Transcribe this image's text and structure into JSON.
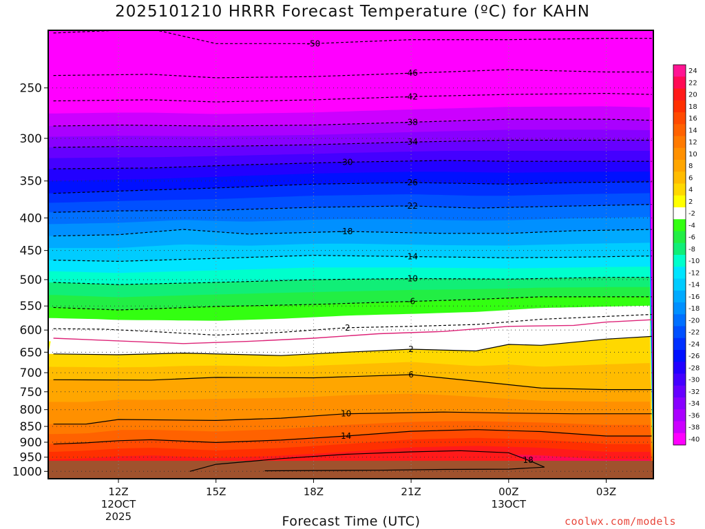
{
  "title": "2025101210 HRRR Forecast Temperature (ºC) for KAHN",
  "credit": "coolwx.com/models",
  "chart_data": {
    "type": "heatmap",
    "title": "2025101210 HRRR Forecast Temperature (ºC) for KAHN",
    "xlabel": "Forecast Time (UTC)",
    "ylabel": "",
    "y_axis": {
      "quantity": "pressure (hPa)",
      "scale": "log",
      "reversed": true,
      "range": [
        1000,
        200
      ],
      "ticks": [
        250,
        300,
        350,
        400,
        450,
        500,
        550,
        600,
        650,
        700,
        750,
        800,
        850,
        900,
        950,
        1000
      ]
    },
    "x_axis": {
      "range": [
        "2025-10-12 10:00Z",
        "2025-10-13 04:00Z"
      ],
      "ticks": [
        {
          "time": "2025-10-12 12:00Z",
          "lines": [
            "12Z",
            "12OCT",
            "2025"
          ]
        },
        {
          "time": "2025-10-12 15:00Z",
          "lines": [
            "15Z"
          ]
        },
        {
          "time": "2025-10-12 18:00Z",
          "lines": [
            "18Z"
          ]
        },
        {
          "time": "2025-10-12 21:00Z",
          "lines": [
            "21Z"
          ]
        },
        {
          "time": "2025-10-13 00:00Z",
          "lines": [
            "00Z",
            "13OCT"
          ]
        },
        {
          "time": "2025-10-13 03:00Z",
          "lines": [
            "03Z"
          ]
        }
      ]
    },
    "grid": "dotted",
    "colorbar": {
      "placement": "right",
      "labels": [
        "24",
        "22",
        "20",
        "18",
        "16",
        "14",
        "12",
        "10",
        "8",
        "6",
        "4",
        "2",
        "-2",
        "-4",
        "-6",
        "-8",
        "-10",
        "-12",
        "-14",
        "-16",
        "-18",
        "-20",
        "-22",
        "-24",
        "-26",
        "-28",
        "-30",
        "-32",
        "-34",
        "-36",
        "-38",
        "-40"
      ],
      "colors": [
        "#ff1493",
        "#ff0a55",
        "#ff1a1a",
        "#ff3000",
        "#ff4a00",
        "#ff6200",
        "#ff7a00",
        "#ff9000",
        "#ffa600",
        "#ffbc00",
        "#ffd800",
        "#ffff00",
        "#ffffff",
        "#33ff11",
        "#22ee44",
        "#11ee77",
        "#00ffcc",
        "#00e5ff",
        "#00ccff",
        "#00aaff",
        "#0090ff",
        "#0070ff",
        "#0050ff",
        "#0030ff",
        "#0010ff",
        "#2200ff",
        "#4400ff",
        "#6600ff",
        "#8800ff",
        "#aa00ff",
        "#cc00ff",
        "#ff00ff"
      ]
    },
    "series": [
      {
        "contour": -50,
        "label": "-50",
        "points": [
          [
            10,
            205
          ],
          [
            12,
            203
          ],
          [
            13,
            202
          ],
          [
            15,
            213
          ],
          [
            18,
            213
          ],
          [
            21,
            210
          ],
          [
            24,
            210
          ],
          [
            27,
            209
          ],
          [
            28.4,
            209
          ]
        ]
      },
      {
        "contour": -46,
        "label": "-46",
        "points": [
          [
            10,
            239
          ],
          [
            13,
            238
          ],
          [
            15,
            241
          ],
          [
            18,
            240
          ],
          [
            21,
            237
          ],
          [
            24,
            234
          ],
          [
            27,
            236
          ],
          [
            28.4,
            236
          ]
        ]
      },
      {
        "contour": -42,
        "label": "-42",
        "points": [
          [
            10,
            262
          ],
          [
            13,
            261
          ],
          [
            15,
            263
          ],
          [
            18,
            261
          ],
          [
            21,
            258
          ],
          [
            24,
            256
          ],
          [
            27,
            255
          ],
          [
            28.4,
            256
          ]
        ]
      },
      {
        "contour": -38,
        "label": "-38",
        "points": [
          [
            10,
            287
          ],
          [
            12,
            286
          ],
          [
            15,
            287
          ],
          [
            18,
            286
          ],
          [
            21,
            283
          ],
          [
            24,
            280
          ],
          [
            27,
            280
          ],
          [
            28.4,
            281
          ]
        ]
      },
      {
        "contour": -34,
        "label": "-34",
        "points": [
          [
            10,
            310
          ],
          [
            12,
            309
          ],
          [
            15,
            309
          ],
          [
            18,
            307
          ],
          [
            21,
            304
          ],
          [
            24,
            302
          ],
          [
            27,
            302
          ],
          [
            28.4,
            302
          ]
        ]
      },
      {
        "contour": -30,
        "label": "-30",
        "points": [
          [
            10,
            335
          ],
          [
            13,
            334
          ],
          [
            16,
            330
          ],
          [
            19,
            327
          ],
          [
            22,
            325
          ],
          [
            24,
            326
          ],
          [
            28.4,
            326
          ]
        ]
      },
      {
        "contour": -26,
        "label": "-26",
        "points": [
          [
            10,
            366
          ],
          [
            12,
            363
          ],
          [
            15,
            359
          ],
          [
            18,
            354
          ],
          [
            21,
            352
          ],
          [
            24,
            354
          ],
          [
            26,
            352
          ],
          [
            28.4,
            351
          ]
        ]
      },
      {
        "contour": -22,
        "label": "-22",
        "points": [
          [
            10,
            392
          ],
          [
            12,
            390
          ],
          [
            15,
            389
          ],
          [
            18,
            385
          ],
          [
            21,
            383
          ],
          [
            23,
            386
          ],
          [
            25,
            384
          ],
          [
            28.4,
            381
          ]
        ]
      },
      {
        "contour": -18,
        "label": "-18",
        "points": [
          [
            10,
            427
          ],
          [
            12,
            425
          ],
          [
            14,
            417
          ],
          [
            16,
            424
          ],
          [
            19,
            420
          ],
          [
            22,
            423
          ],
          [
            24,
            423
          ],
          [
            26,
            419
          ],
          [
            28.4,
            417
          ]
        ]
      },
      {
        "contour": -14,
        "label": "-14",
        "points": [
          [
            10,
            466
          ],
          [
            12,
            468
          ],
          [
            15,
            463
          ],
          [
            18,
            458
          ],
          [
            21,
            460
          ],
          [
            24,
            462
          ],
          [
            26,
            461
          ],
          [
            28.4,
            459
          ]
        ]
      },
      {
        "contour": -10,
        "label": "-10",
        "points": [
          [
            10,
            505
          ],
          [
            12,
            509
          ],
          [
            15,
            505
          ],
          [
            18,
            500
          ],
          [
            21,
            498
          ],
          [
            24,
            499
          ],
          [
            27,
            496
          ],
          [
            28.4,
            496
          ]
        ]
      },
      {
        "contour": -6,
        "label": "-6",
        "points": [
          [
            10,
            553
          ],
          [
            12,
            558
          ],
          [
            15,
            551
          ],
          [
            18,
            547
          ],
          [
            21,
            541
          ],
          [
            23,
            537
          ],
          [
            25,
            532
          ],
          [
            28.4,
            532
          ]
        ]
      },
      {
        "contour": -2,
        "label": "-2",
        "points": [
          [
            10,
            597
          ],
          [
            11.5,
            598
          ],
          [
            13,
            603
          ],
          [
            15,
            611
          ],
          [
            17,
            605
          ],
          [
            19,
            595
          ],
          [
            21,
            592
          ],
          [
            23,
            588
          ],
          [
            25,
            577
          ],
          [
            28.4,
            567
          ]
        ]
      },
      {
        "contour": 2,
        "label": "2",
        "points": [
          [
            10,
            654
          ],
          [
            12,
            656
          ],
          [
            14,
            652
          ],
          [
            17,
            658
          ],
          [
            19,
            650
          ],
          [
            21,
            643
          ],
          [
            23,
            647
          ],
          [
            24,
            632
          ],
          [
            25,
            634
          ],
          [
            27,
            620
          ],
          [
            28.4,
            614
          ]
        ]
      },
      {
        "contour": 6,
        "label": "6",
        "points": [
          [
            10,
            718
          ],
          [
            13,
            719
          ],
          [
            15,
            712
          ],
          [
            18,
            713
          ],
          [
            21,
            705
          ],
          [
            23,
            722
          ],
          [
            25,
            740
          ],
          [
            27,
            744
          ],
          [
            28.4,
            744
          ]
        ]
      },
      {
        "contour": 10,
        "label": "10",
        "points": [
          [
            10,
            843
          ],
          [
            11,
            843
          ],
          [
            12,
            829
          ],
          [
            15,
            832
          ],
          [
            17,
            825
          ],
          [
            19,
            812
          ],
          [
            22,
            807
          ],
          [
            24,
            810
          ],
          [
            26,
            812
          ],
          [
            28.4,
            812
          ]
        ]
      },
      {
        "contour": 14,
        "label": "14",
        "points": [
          [
            10,
            906
          ],
          [
            11,
            902
          ],
          [
            12,
            895
          ],
          [
            13,
            892
          ],
          [
            15,
            901
          ],
          [
            17,
            893
          ],
          [
            19,
            880
          ],
          [
            21,
            865
          ],
          [
            23,
            860
          ],
          [
            25,
            866
          ],
          [
            27,
            880
          ],
          [
            28.4,
            880
          ]
        ]
      },
      {
        "contour": 18,
        "label": "18",
        "points": [
          [
            14.2,
            1000
          ],
          [
            15,
            975
          ],
          [
            17,
            955
          ],
          [
            19,
            940
          ],
          [
            21,
            932
          ],
          [
            22.5,
            928
          ],
          [
            24,
            935
          ],
          [
            24.6,
            960
          ],
          [
            25.1,
            985
          ],
          [
            24,
            992
          ],
          [
            22,
            993
          ],
          [
            20,
            996
          ],
          [
            18,
            997
          ],
          [
            16.5,
            998
          ]
        ]
      },
      {
        "contour": -1,
        "label": "",
        "color": "#dd2277",
        "points": [
          [
            10,
            618
          ],
          [
            12,
            624
          ],
          [
            14,
            630
          ],
          [
            16,
            625
          ],
          [
            18,
            618
          ],
          [
            20,
            608
          ],
          [
            22,
            603
          ],
          [
            24,
            592
          ],
          [
            26,
            590
          ],
          [
            27,
            583
          ],
          [
            28.4,
            578
          ]
        ]
      }
    ]
  }
}
